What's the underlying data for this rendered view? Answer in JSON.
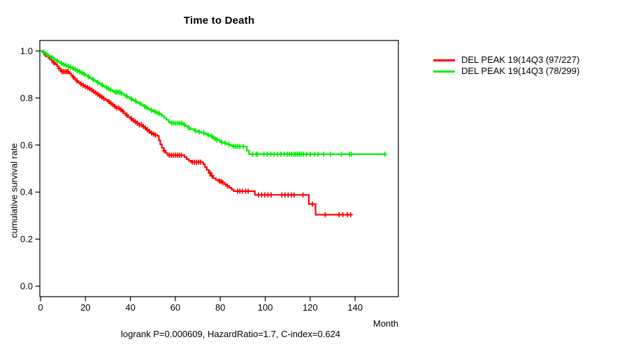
{
  "figure": {
    "title": "Time to Death",
    "ylabel": "cumulative survival rate",
    "xlabel": "Month",
    "annotation": "logrank P=0.000609, HazardRatio=1.7, C-index=0.624"
  },
  "chart_data": {
    "type": "line",
    "subtype": "kaplan-meier-step-survival",
    "title": "Time to Death",
    "xlabel": "Month",
    "ylabel": "cumulative survival rate",
    "annotation": "logrank P=0.000609, HazardRatio=1.7, C-index=0.624",
    "xlim": [
      0,
      159
    ],
    "ylim": [
      0,
      1.04
    ],
    "xticks": [
      0,
      20,
      40,
      60,
      80,
      100,
      120,
      140
    ],
    "yticks": [
      0.0,
      0.2,
      0.4,
      0.6,
      0.8,
      1.0
    ],
    "grid": false,
    "legend_position": "outside-top-right",
    "axis_color": "#000000",
    "series": [
      {
        "name": "DEL PEAK 19(14Q3 (97/227)",
        "color": "#ff0000",
        "events": "97/227",
        "end": 138.2,
        "steps": [
          [
            0,
            1.0
          ],
          [
            0.7,
            0.995
          ],
          [
            1.4,
            0.99
          ],
          [
            2.1,
            0.984
          ],
          [
            2.8,
            0.978
          ],
          [
            3.5,
            0.971
          ],
          [
            4.2,
            0.964
          ],
          [
            5,
            0.957
          ],
          [
            5.8,
            0.95
          ],
          [
            6.6,
            0.943
          ],
          [
            7.4,
            0.935
          ],
          [
            8.2,
            0.926
          ],
          [
            9,
            0.912
          ],
          [
            12.7,
            0.905
          ],
          [
            13.5,
            0.897
          ],
          [
            14.3,
            0.889
          ],
          [
            15.1,
            0.881
          ],
          [
            15.9,
            0.873
          ],
          [
            16.7,
            0.866
          ],
          [
            17.6,
            0.86
          ],
          [
            18.5,
            0.854
          ],
          [
            19.4,
            0.849
          ],
          [
            20.3,
            0.844
          ],
          [
            21.2,
            0.839
          ],
          [
            22.1,
            0.834
          ],
          [
            23,
            0.828
          ],
          [
            24,
            0.822
          ],
          [
            25,
            0.816
          ],
          [
            26,
            0.81
          ],
          [
            27,
            0.804
          ],
          [
            28,
            0.798
          ],
          [
            29,
            0.791
          ],
          [
            30,
            0.785
          ],
          [
            31,
            0.778
          ],
          [
            32,
            0.771
          ],
          [
            33,
            0.764
          ],
          [
            34,
            0.757
          ],
          [
            35,
            0.75
          ],
          [
            36,
            0.743
          ],
          [
            37,
            0.735
          ],
          [
            38,
            0.727
          ],
          [
            39,
            0.719
          ],
          [
            40,
            0.712
          ],
          [
            41,
            0.705
          ],
          [
            42,
            0.699
          ],
          [
            43,
            0.693
          ],
          [
            44,
            0.686
          ],
          [
            45,
            0.679
          ],
          [
            46,
            0.672
          ],
          [
            47,
            0.665
          ],
          [
            48,
            0.658
          ],
          [
            49,
            0.651
          ],
          [
            50,
            0.647
          ],
          [
            51,
            0.643
          ],
          [
            52,
            0.639
          ],
          [
            52.7,
            0.62
          ],
          [
            53.3,
            0.603
          ],
          [
            54,
            0.588
          ],
          [
            54.8,
            0.576
          ],
          [
            55.7,
            0.566
          ],
          [
            56.5,
            0.557
          ],
          [
            64,
            0.549
          ],
          [
            65,
            0.54
          ],
          [
            66,
            0.533
          ],
          [
            67,
            0.527
          ],
          [
            72.4,
            0.518
          ],
          [
            73.2,
            0.506
          ],
          [
            74,
            0.494
          ],
          [
            74.9,
            0.482
          ],
          [
            75.8,
            0.469
          ],
          [
            76.8,
            0.459
          ],
          [
            78,
            0.452
          ],
          [
            79.5,
            0.446
          ],
          [
            81,
            0.44
          ],
          [
            82,
            0.433
          ],
          [
            83,
            0.426
          ],
          [
            84,
            0.418
          ],
          [
            85,
            0.411
          ],
          [
            86,
            0.404
          ],
          [
            95.4,
            0.388
          ],
          [
            119.4,
            0.349
          ],
          [
            122.4,
            0.304
          ]
        ],
        "censors": [
          2.2,
          4.1,
          5.9,
          8.2,
          9.6,
          10.3,
          11,
          11.7,
          12.3,
          14.6,
          16.2,
          18,
          19,
          20,
          21,
          21.9,
          22.8,
          23.7,
          24.6,
          25.5,
          26.4,
          27.3,
          28.2,
          30.4,
          31.3,
          32.2,
          33.1,
          34,
          34.9,
          35.8,
          36.7,
          38.4,
          40.4,
          41.3,
          42.2,
          43.1,
          44,
          44.9,
          45.8,
          46.7,
          47.6,
          48.5,
          49.4,
          50.3,
          51.1,
          55,
          57.3,
          58.2,
          59.1,
          60,
          60.9,
          61.8,
          62.7,
          67.6,
          68.5,
          69.4,
          70.3,
          71.2,
          75.4,
          76.3,
          79.7,
          80.4,
          81.1,
          83.2,
          87.7,
          88.7,
          89.8,
          91.3,
          92.4,
          97,
          98.4,
          99.8,
          101.2,
          102.6,
          107.4,
          108.8,
          110.2,
          111.6,
          112.8,
          116.8,
          121,
          126.7,
          132.9,
          134.5,
          136.6,
          138
        ]
      },
      {
        "name": "DEL PEAK 19(14Q3 (78/299)",
        "color": "#00ee00",
        "events": "78/299",
        "end": 153.5,
        "steps": [
          [
            0,
            1.0
          ],
          [
            0.8,
            0.996
          ],
          [
            1.6,
            0.992
          ],
          [
            2.4,
            0.987
          ],
          [
            3.2,
            0.982
          ],
          [
            4,
            0.977
          ],
          [
            4.8,
            0.972
          ],
          [
            5.6,
            0.967
          ],
          [
            6.4,
            0.962
          ],
          [
            7.2,
            0.958
          ],
          [
            8,
            0.953
          ],
          [
            9,
            0.947
          ],
          [
            10,
            0.942
          ],
          [
            11,
            0.938
          ],
          [
            12,
            0.934
          ],
          [
            13,
            0.93
          ],
          [
            14,
            0.927
          ],
          [
            15,
            0.922
          ],
          [
            16,
            0.917
          ],
          [
            17,
            0.912
          ],
          [
            18,
            0.907
          ],
          [
            19,
            0.902
          ],
          [
            20,
            0.897
          ],
          [
            21,
            0.891
          ],
          [
            22,
            0.885
          ],
          [
            23,
            0.879
          ],
          [
            24,
            0.873
          ],
          [
            25,
            0.867
          ],
          [
            26,
            0.861
          ],
          [
            27,
            0.856
          ],
          [
            28,
            0.85
          ],
          [
            29,
            0.844
          ],
          [
            30,
            0.839
          ],
          [
            31,
            0.835
          ],
          [
            32,
            0.83
          ],
          [
            33,
            0.825
          ],
          [
            36,
            0.819
          ],
          [
            37,
            0.813
          ],
          [
            38,
            0.807
          ],
          [
            39,
            0.802
          ],
          [
            40,
            0.796
          ],
          [
            41,
            0.791
          ],
          [
            42,
            0.786
          ],
          [
            43,
            0.781
          ],
          [
            44,
            0.776
          ],
          [
            45,
            0.77
          ],
          [
            46,
            0.764
          ],
          [
            47,
            0.758
          ],
          [
            48,
            0.753
          ],
          [
            49,
            0.748
          ],
          [
            50,
            0.743
          ],
          [
            51,
            0.738
          ],
          [
            52,
            0.734
          ],
          [
            53,
            0.73
          ],
          [
            54,
            0.724
          ],
          [
            55,
            0.716
          ],
          [
            56,
            0.707
          ],
          [
            57,
            0.698
          ],
          [
            58,
            0.693
          ],
          [
            63.5,
            0.687
          ],
          [
            64.5,
            0.681
          ],
          [
            65.5,
            0.673
          ],
          [
            66.5,
            0.668
          ],
          [
            68.5,
            0.66
          ],
          [
            70,
            0.656
          ],
          [
            71.5,
            0.652
          ],
          [
            73,
            0.648
          ],
          [
            74.5,
            0.643
          ],
          [
            75.5,
            0.638
          ],
          [
            76.5,
            0.632
          ],
          [
            77.5,
            0.627
          ],
          [
            78.5,
            0.622
          ],
          [
            79.6,
            0.617
          ],
          [
            80.6,
            0.612
          ],
          [
            81.6,
            0.608
          ],
          [
            83,
            0.603
          ],
          [
            84.5,
            0.598
          ],
          [
            85.5,
            0.594
          ],
          [
            91.8,
            0.576
          ],
          [
            92.8,
            0.561
          ]
        ],
        "censors": [
          1.4,
          3.3,
          5.2,
          7.4,
          9.4,
          10.4,
          11.4,
          12.4,
          13.4,
          14.4,
          15.4,
          16.4,
          17.4,
          18.4,
          19.4,
          21.4,
          23.4,
          25.4,
          27.4,
          29.4,
          30.3,
          31.2,
          33.2,
          33.9,
          34.6,
          35.3,
          36,
          38.4,
          40.4,
          42.4,
          44.4,
          46.4,
          47.4,
          49.4,
          50.8,
          51.8,
          52.8,
          58.4,
          59.3,
          60.2,
          61.1,
          62,
          62.9,
          64,
          66,
          69,
          70.6,
          72.6,
          74.6,
          76.1,
          76.9,
          77.7,
          78.5,
          80.6,
          82.2,
          83.8,
          86,
          86.9,
          87.8,
          88.7,
          90.2,
          94.4,
          96,
          96.6,
          99.4,
          100.9,
          102.5,
          104,
          105.5,
          107,
          108.5,
          109.8,
          110.8,
          111.8,
          112.8,
          113.6,
          114.4,
          115.2,
          116,
          117,
          118.4,
          120,
          122,
          123.5,
          126,
          129,
          133.9,
          137.5,
          138.3,
          153.2
        ]
      }
    ]
  }
}
